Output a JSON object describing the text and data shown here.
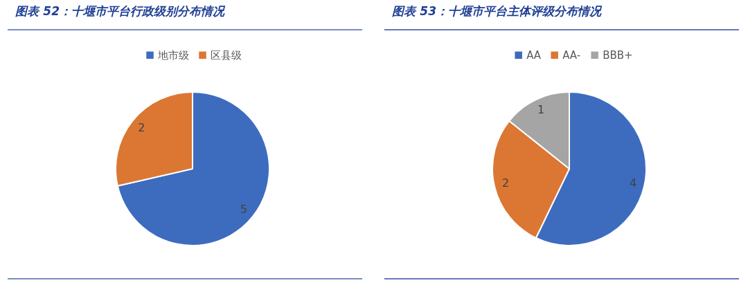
{
  "chart_data": [
    {
      "type": "pie",
      "title": "图表 52：十堰市平台行政级别分布情况",
      "categories": [
        "地市级",
        "区县级"
      ],
      "values": [
        5,
        2
      ],
      "colors": [
        "#3d6cbf",
        "#db7733"
      ],
      "data_labels": true,
      "legend": "top"
    },
    {
      "type": "pie",
      "title": "图表 53：十堰市平台主体评级分布情况",
      "categories": [
        "AA",
        "AA-",
        "BBB+"
      ],
      "values": [
        4,
        2,
        1
      ],
      "colors": [
        "#3d6cbf",
        "#db7733",
        "#a5a5a5"
      ],
      "data_labels": true,
      "legend": "top"
    }
  ]
}
